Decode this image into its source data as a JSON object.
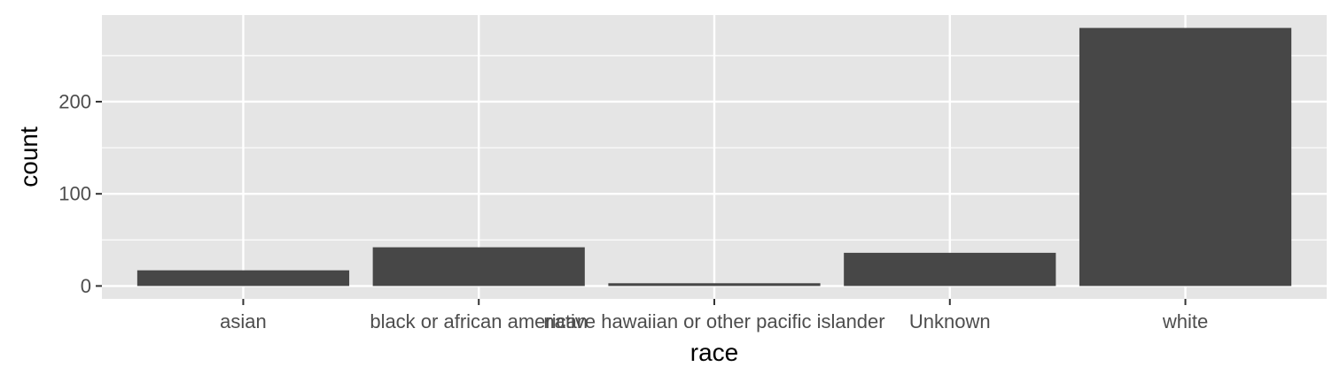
{
  "chart_data": {
    "type": "bar",
    "title": "",
    "xlabel": "race",
    "ylabel": "count",
    "categories": [
      "asian",
      "black or african american",
      "native hawaiian or other pacific islander",
      "Unknown",
      "white"
    ],
    "values": [
      17,
      42,
      3,
      36,
      280
    ],
    "ylim": [
      -14,
      294
    ],
    "yticks": [
      0,
      100,
      200
    ],
    "ytick_labels": [
      "0",
      "100",
      "200"
    ],
    "grid": true,
    "legend": "none",
    "colors": {
      "bar": "#474747",
      "panel": "#e5e5e5",
      "grid": "#ffffff",
      "tick": "#4d4d4d"
    }
  }
}
